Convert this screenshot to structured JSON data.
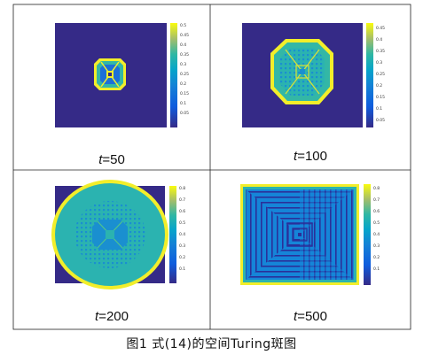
{
  "figure": {
    "caption": "图1   式(14)的空间Turing斑图",
    "panels": [
      {
        "t_var": "t",
        "t_value": "=50",
        "colorbar": {
          "ticks": [
            "0.5",
            "0.45",
            "0.4",
            "0.35",
            "0.3",
            "0.25",
            "0.2",
            "0.15",
            "0.1",
            "0.05"
          ]
        }
      },
      {
        "t_var": "t",
        "t_value": "=100",
        "colorbar": {
          "ticks": [
            "0.45",
            "0.4",
            "0.35",
            "0.3",
            "0.25",
            "0.2",
            "0.15",
            "0.1",
            "0.05"
          ]
        }
      },
      {
        "t_var": "t",
        "t_value": "=200",
        "colorbar": {
          "ticks": [
            "0.8",
            "0.7",
            "0.6",
            "0.5",
            "0.4",
            "0.3",
            "0.2",
            "0.1"
          ]
        }
      },
      {
        "t_var": "t",
        "t_value": "=500",
        "colorbar": {
          "ticks": [
            "0.8",
            "0.7",
            "0.6",
            "0.5",
            "0.4",
            "0.3",
            "0.2",
            "0.1"
          ]
        }
      }
    ]
  }
}
